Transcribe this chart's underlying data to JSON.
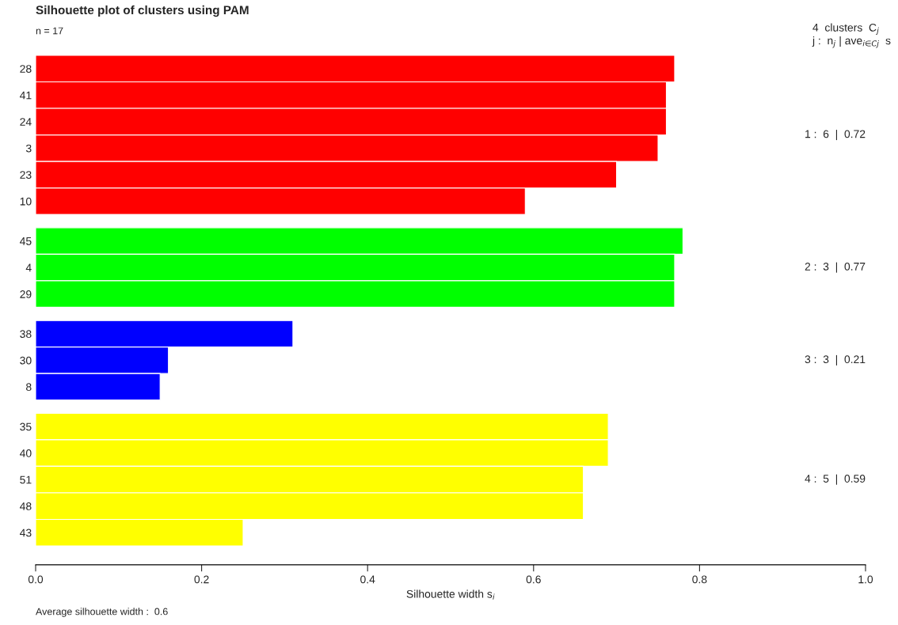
{
  "chart_data": {
    "type": "bar",
    "orientation": "horizontal",
    "title": "Silhouette plot of clusters using PAM",
    "subtitle": "n = 17",
    "xlabel": "Silhouette width s$_{i}$",
    "categories": [
      "28",
      "41",
      "24",
      "3",
      "23",
      "10",
      null,
      "45",
      "4",
      "29",
      null,
      "38",
      "30",
      "8",
      null,
      "35",
      "40",
      "51",
      "48",
      "43"
    ],
    "values": [
      0.77,
      0.76,
      0.76,
      0.75,
      0.7,
      0.59,
      null,
      0.78,
      0.77,
      0.77,
      null,
      0.31,
      0.16,
      0.15,
      null,
      0.69,
      0.69,
      0.66,
      0.66,
      0.25
    ],
    "colors": [
      "#ff0000",
      "#ff0000",
      "#ff0000",
      "#ff0000",
      "#ff0000",
      "#ff0000",
      null,
      "#00ff00",
      "#00ff00",
      "#00ff00",
      null,
      "#0000ff",
      "#0000ff",
      "#0000ff",
      null,
      "#ffff00",
      "#ffff00",
      "#ffff00",
      "#ffff00",
      "#ffff00"
    ],
    "xlim": [
      0,
      1
    ],
    "xticks": [
      {
        "value": 0,
        "label": "0.0"
      },
      0.2,
      0.4,
      0.6,
      0.8,
      {
        "value": 1,
        "label": "1.0"
      }
    ],
    "legend_title": "4  clusters  C$_{j}$\nj :  n$_{j}$ | ave$_{i∈Cj}$  s",
    "annotations": [
      "1 :  6  |  0.72",
      "2 :  3  |  0.77",
      "3 :  3  |  0.21",
      "4 :  5  |  0.59",
      "Average silhouette width :  0.6"
    ],
    "grid": false
  }
}
